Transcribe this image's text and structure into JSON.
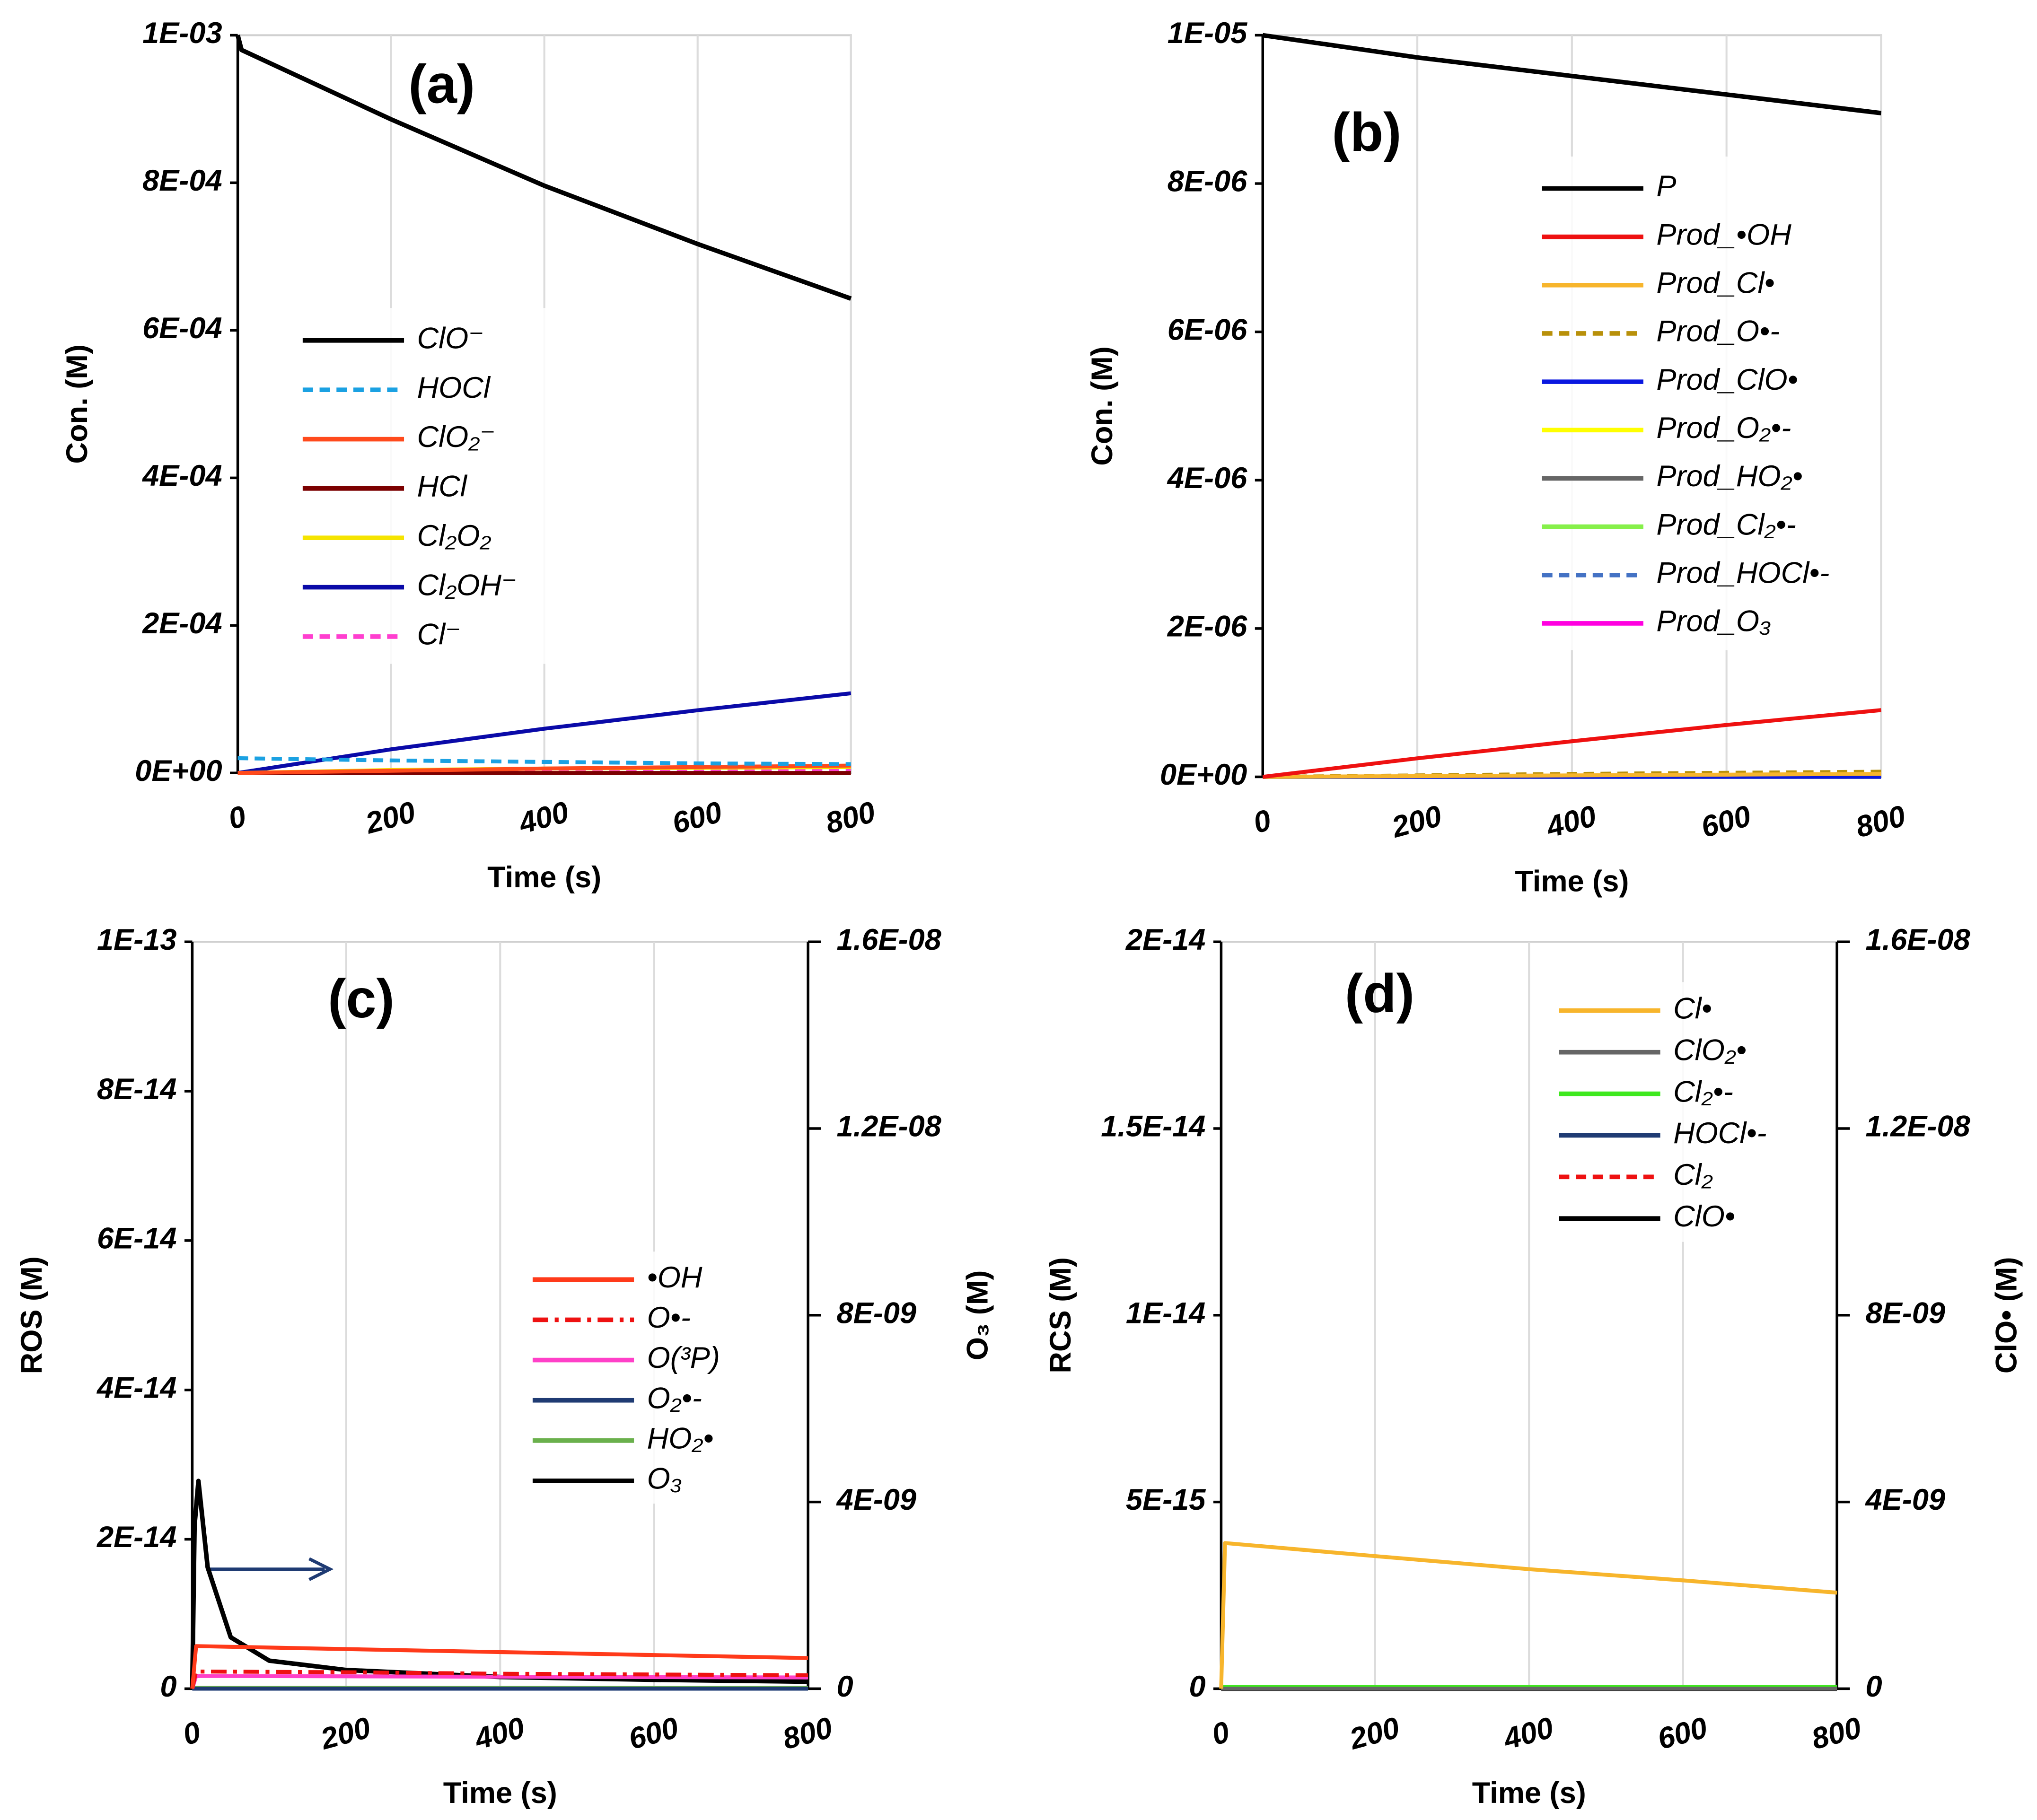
{
  "chart_data": [
    {
      "type": "line",
      "title": "(a)",
      "x_label": "Time (s)",
      "y_label": "Con. (M)",
      "xlim": [
        0,
        800
      ],
      "xticks": [
        0,
        200,
        400,
        600,
        800
      ],
      "grid": "x",
      "ylim": [
        0,
        0.001
      ],
      "yticks": [
        {
          "value": 0,
          "label": "0E+00"
        },
        {
          "value": 0.0002,
          "label": "2E-04"
        },
        {
          "value": 0.0004,
          "label": "4E-04"
        },
        {
          "value": 0.0006,
          "label": "6E-04"
        },
        {
          "value": 0.0008,
          "label": "8E-04"
        },
        {
          "value": 0.001,
          "label": "1E-03"
        }
      ],
      "series": [
        {
          "name": "ClO⁻",
          "color": "#000000",
          "style": "solid",
          "x": [
            0,
            5,
            200,
            400,
            600,
            800
          ],
          "values": [
            0.001,
            0.00098,
            0.000886,
            0.000796,
            0.000717,
            0.000643
          ]
        },
        {
          "name": "HOCl",
          "color": "#1ba1e2",
          "style": "dashed",
          "x": [
            0,
            200,
            400,
            600,
            800
          ],
          "values": [
            2e-05,
            1.7e-05,
            1.5e-05,
            1.3e-05,
            1.2e-05
          ]
        },
        {
          "name": "ClO₂⁻",
          "color": "#ff4a1c",
          "style": "solid",
          "x": [
            0,
            200,
            400,
            600,
            800
          ],
          "values": [
            0,
            3e-06,
            6e-06,
            8e-06,
            1e-05
          ]
        },
        {
          "name": "HCl",
          "color": "#7b0000",
          "style": "solid",
          "x": [
            0,
            200,
            400,
            600,
            800
          ],
          "values": [
            0,
            0,
            0,
            0,
            0
          ]
        },
        {
          "name": "Cl₂O₂",
          "color": "#f5e400",
          "style": "solid",
          "x": [
            0,
            200,
            400,
            600,
            800
          ],
          "values": [
            0,
            4e-06,
            6e-06,
            7e-06,
            8e-06
          ]
        },
        {
          "name": "Cl₂OH⁻",
          "color": "#0a0aa8",
          "style": "solid",
          "x": [
            0,
            200,
            400,
            600,
            800
          ],
          "values": [
            0,
            3.2e-05,
            6e-05,
            8.5e-05,
            0.000108
          ]
        },
        {
          "name": "Cl⁻",
          "color": "#ff3fcf",
          "style": "dashed",
          "x": [
            0,
            200,
            400,
            600,
            800
          ],
          "values": [
            0,
            1e-06,
            2e-06,
            2.5e-06,
            3e-06
          ]
        }
      ]
    },
    {
      "type": "line",
      "title": "(b)",
      "x_label": "Time (s)",
      "y_label": "Con. (M)",
      "xlim": [
        0,
        800
      ],
      "xticks": [
        0,
        200,
        400,
        600,
        800
      ],
      "grid": "x",
      "ylim": [
        0,
        1e-05
      ],
      "yticks": [
        {
          "value": 0,
          "label": "0E+00"
        },
        {
          "value": 2e-06,
          "label": "2E-06"
        },
        {
          "value": 4e-06,
          "label": "4E-06"
        },
        {
          "value": 6e-06,
          "label": "6E-06"
        },
        {
          "value": 8e-06,
          "label": "8E-06"
        },
        {
          "value": 1e-05,
          "label": "1E-05"
        }
      ],
      "series": [
        {
          "name": "P",
          "color": "#000000",
          "style": "solid",
          "x": [
            0,
            200,
            400,
            600,
            800
          ],
          "values": [
            1e-05,
            9.7e-06,
            9.45e-06,
            9.2e-06,
            8.95e-06
          ]
        },
        {
          "name": "Prod_•OH",
          "color": "#ee1111",
          "style": "solid",
          "x": [
            0,
            200,
            400,
            600,
            800
          ],
          "values": [
            0,
            2.5e-07,
            4.8e-07,
            7e-07,
            9e-07
          ]
        },
        {
          "name": "Prod_Cl•",
          "color": "#f7b52c",
          "style": "solid",
          "x": [
            0,
            200,
            400,
            600,
            800
          ],
          "values": [
            0,
            1e-08,
            2e-08,
            3e-08,
            4e-08
          ]
        },
        {
          "name": "Prod_O•-",
          "color": "#b8900a",
          "style": "dashed",
          "x": [
            0,
            200,
            400,
            600,
            800
          ],
          "values": [
            0,
            2e-08,
            4e-08,
            5.5e-08,
            7e-08
          ]
        },
        {
          "name": "Prod_ClO•",
          "color": "#0a18e0",
          "style": "solid",
          "x": [
            0,
            200,
            400,
            600,
            800
          ],
          "values": [
            0,
            0,
            0,
            0,
            0
          ]
        },
        {
          "name": "Prod_O₂•-",
          "color": "#ffff00",
          "style": "solid",
          "x": [
            0,
            200,
            400,
            600,
            800
          ],
          "values": [
            0,
            0,
            0,
            0,
            0
          ]
        },
        {
          "name": "Prod_HO₂•",
          "color": "#666666",
          "style": "solid",
          "x": [
            0,
            200,
            400,
            600,
            800
          ],
          "values": [
            0,
            0,
            0,
            0,
            0
          ]
        },
        {
          "name": "Prod_Cl₂•-",
          "color": "#86f04a",
          "style": "solid",
          "x": [
            0,
            200,
            400,
            600,
            800
          ],
          "values": [
            0,
            0,
            0,
            0,
            0
          ]
        },
        {
          "name": "Prod_HOCl•-",
          "color": "#4472c4",
          "style": "dashed",
          "x": [
            0,
            200,
            400,
            600,
            800
          ],
          "values": [
            0,
            0,
            0,
            0,
            0
          ]
        },
        {
          "name": "Prod_O₃",
          "color": "#ff00e0",
          "style": "solid",
          "x": [
            0,
            200,
            400,
            600,
            800
          ],
          "values": [
            0,
            5e-09,
            8e-09,
            1e-08,
            1.2e-08
          ]
        }
      ]
    },
    {
      "type": "line",
      "title": "(c)",
      "x_label": "Time (s)",
      "y_label": "ROS (M)",
      "y2_label": "O₃ (M)",
      "xlim": [
        0,
        800
      ],
      "xticks": [
        0,
        200,
        400,
        600,
        800
      ],
      "grid": "x",
      "ylim": [
        0,
        1e-13
      ],
      "yticks": [
        0,
        {
          "value": 2e-14,
          "label": "2E-14"
        },
        {
          "value": 4e-14,
          "label": "4E-14"
        },
        {
          "value": 6e-14,
          "label": "6E-14"
        },
        {
          "value": 8e-14,
          "label": "8E-14"
        },
        {
          "value": 1e-13,
          "label": "1E-13"
        }
      ],
      "y2lim": [
        0,
        1.6e-08
      ],
      "y2ticks": [
        0,
        {
          "value": 4e-09,
          "label": "4E-09"
        },
        {
          "value": 8e-09,
          "label": "8E-09"
        },
        {
          "value": 1.2e-08,
          "label": "1.2E-08"
        },
        {
          "value": 1.6e-08,
          "label": "1.6E-08"
        }
      ],
      "series": [
        {
          "name": "•OH",
          "color": "#ff3a1a",
          "style": "solid",
          "x": [
            0,
            5,
            200,
            400,
            600,
            800
          ],
          "values": [
            0,
            5.7e-15,
            5.3e-15,
            4.9e-15,
            4.5e-15,
            4.1e-15
          ]
        },
        {
          "name": "O•-",
          "color": "#ee1111",
          "style": "dashdot",
          "x": [
            0,
            5,
            200,
            400,
            600,
            800
          ],
          "values": [
            0,
            2.3e-15,
            2.2e-15,
            2e-15,
            1.9e-15,
            1.8e-15
          ]
        },
        {
          "name": "O(³P)",
          "color": "#ff40c8",
          "style": "solid",
          "x": [
            0,
            5,
            200,
            400,
            600,
            800
          ],
          "values": [
            0,
            1.7e-15,
            1.65e-15,
            1.6e-15,
            1.55e-15,
            1.5e-15
          ]
        },
        {
          "name": "O₂•-",
          "color": "#1f3b73",
          "style": "solid",
          "x": [
            0,
            200,
            400,
            600,
            800
          ],
          "values": [
            0,
            0,
            0,
            0,
            0
          ]
        },
        {
          "name": "HO₂•",
          "color": "#6ab04c",
          "style": "solid",
          "x": [
            0,
            200,
            400,
            600,
            800
          ],
          "values": [
            1e-16,
            1e-16,
            1e-16,
            1e-16,
            1e-16
          ]
        },
        {
          "name": "O₃",
          "color": "#000000",
          "style": "solid",
          "axis": "y2",
          "x": [
            0,
            3,
            8,
            20,
            50,
            100,
            200,
            400,
            600,
            800
          ],
          "values": [
            0,
            3.5e-09,
            4.45e-09,
            2.6e-09,
            1.1e-09,
            6e-10,
            4e-10,
            2.5e-10,
            1.9e-10,
            1.5e-10
          ]
        }
      ]
    },
    {
      "type": "line",
      "title": "(d)",
      "x_label": "Time (s)",
      "y_label": "RCS (M)",
      "y2_label": "ClO• (M)",
      "xlim": [
        0,
        800
      ],
      "xticks": [
        0,
        200,
        400,
        600,
        800
      ],
      "grid": "x",
      "ylim": [
        0,
        2e-14
      ],
      "yticks": [
        0,
        {
          "value": 5e-15,
          "label": "5E-15"
        },
        {
          "value": 1e-14,
          "label": "1E-14"
        },
        {
          "value": 1.5e-14,
          "label": "1.5E-14"
        },
        {
          "value": 2e-14,
          "label": "2E-14"
        }
      ],
      "y2lim": [
        0,
        1.6e-08
      ],
      "y2ticks": [
        0,
        {
          "value": 4e-09,
          "label": "4E-09"
        },
        {
          "value": 8e-09,
          "label": "8E-09"
        },
        {
          "value": 1.2e-08,
          "label": "1.2E-08"
        },
        {
          "value": 1.6e-08,
          "label": "1.6E-08"
        }
      ],
      "series": [
        {
          "name": "Cl•",
          "color": "#f7b52c",
          "style": "solid",
          "x": [
            0,
            5,
            200,
            400,
            600,
            800
          ],
          "values": [
            0,
            3.9e-15,
            3.55e-15,
            3.2e-15,
            2.9e-15,
            2.57e-15
          ]
        },
        {
          "name": "ClO₂•",
          "color": "#666666",
          "style": "solid",
          "x": [
            0,
            200,
            400,
            600,
            800
          ],
          "values": [
            0,
            0,
            0,
            0,
            0
          ]
        },
        {
          "name": "Cl₂•-",
          "color": "#3ee81e",
          "style": "solid",
          "x": [
            0,
            200,
            400,
            600,
            800
          ],
          "values": [
            5e-17,
            5e-17,
            5e-17,
            5e-17,
            5e-17
          ]
        },
        {
          "name": "HOCl•-",
          "color": "#1f3b73",
          "style": "solid",
          "x": [
            0,
            200,
            400,
            600,
            800
          ],
          "values": [
            0,
            0,
            0,
            0,
            0
          ]
        },
        {
          "name": "Cl₂",
          "color": "#ee1111",
          "style": "dashed",
          "x": [
            0,
            200,
            400,
            600,
            800
          ],
          "values": [
            0,
            0,
            0,
            0,
            0
          ]
        },
        {
          "name": "ClO•",
          "color": "#000000",
          "style": "solid",
          "axis": "y2",
          "x": [
            0,
            200,
            400,
            600,
            800
          ],
          "values": [
            0,
            0,
            0,
            0,
            0
          ]
        }
      ]
    }
  ]
}
